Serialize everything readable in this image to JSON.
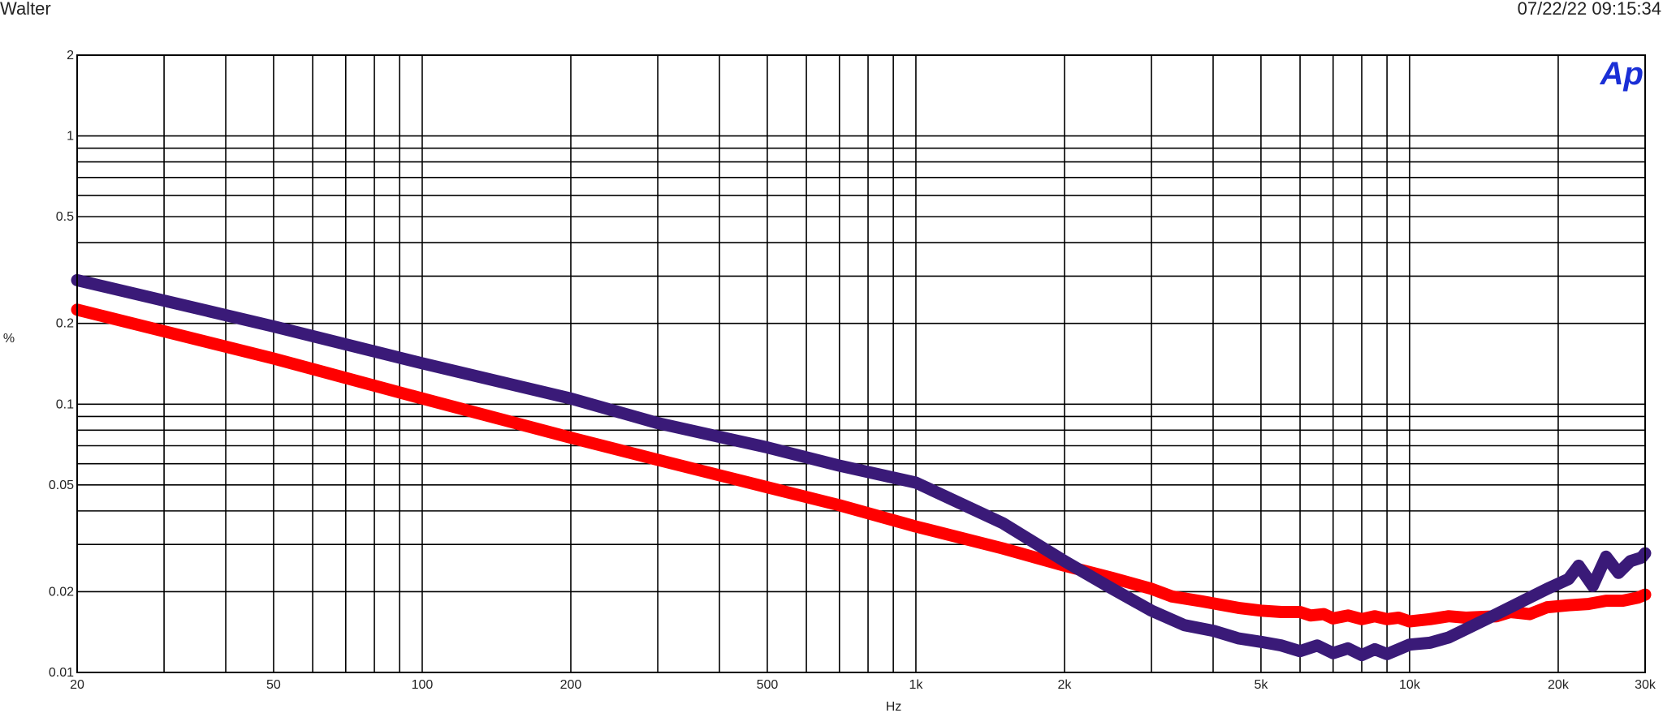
{
  "header": {
    "title": "Walter",
    "timestamp": "07/22/22 09:15:34"
  },
  "logo": {
    "text": "Ap",
    "color": "#1a2fd6"
  },
  "chart_data": {
    "type": "line",
    "xlabel": "Hz",
    "ylabel": "%",
    "x_scale": "log",
    "y_scale": "log",
    "xlim": [
      20,
      30000
    ],
    "ylim": [
      0.01,
      2
    ],
    "grid": true,
    "x_ticks": [
      {
        "value": 20,
        "label": "20"
      },
      {
        "value": 50,
        "label": "50"
      },
      {
        "value": 100,
        "label": "100"
      },
      {
        "value": 200,
        "label": "200"
      },
      {
        "value": 500,
        "label": "500"
      },
      {
        "value": 1000,
        "label": "1k"
      },
      {
        "value": 2000,
        "label": "2k"
      },
      {
        "value": 5000,
        "label": "5k"
      },
      {
        "value": 10000,
        "label": "10k"
      },
      {
        "value": 20000,
        "label": "20k"
      },
      {
        "value": 30000,
        "label": "30k"
      }
    ],
    "y_ticks": [
      {
        "value": 2,
        "label": "2"
      },
      {
        "value": 1,
        "label": "1"
      },
      {
        "value": 0.5,
        "label": "0.5"
      },
      {
        "value": 0.2,
        "label": "0.2"
      },
      {
        "value": 0.1,
        "label": "0.1"
      },
      {
        "value": 0.05,
        "label": "0.05"
      },
      {
        "value": 0.02,
        "label": "0.02"
      },
      {
        "value": 0.01,
        "label": "0.01"
      }
    ],
    "series": [
      {
        "color": "#ff0000",
        "points": [
          [
            20,
            0.225
          ],
          [
            50,
            0.148
          ],
          [
            100,
            0.105
          ],
          [
            200,
            0.075
          ],
          [
            300,
            0.062
          ],
          [
            500,
            0.049
          ],
          [
            700,
            0.042
          ],
          [
            1000,
            0.035
          ],
          [
            1500,
            0.029
          ],
          [
            2000,
            0.025
          ],
          [
            2500,
            0.0225
          ],
          [
            3000,
            0.0205
          ],
          [
            3300,
            0.0192
          ],
          [
            3800,
            0.0184
          ],
          [
            4500,
            0.0174
          ],
          [
            5000,
            0.017
          ],
          [
            5500,
            0.0168
          ],
          [
            6000,
            0.0168
          ],
          [
            6300,
            0.0163
          ],
          [
            6700,
            0.0165
          ],
          [
            7000,
            0.0159
          ],
          [
            7500,
            0.0163
          ],
          [
            8000,
            0.0158
          ],
          [
            8500,
            0.0162
          ],
          [
            9000,
            0.0158
          ],
          [
            9500,
            0.016
          ],
          [
            10000,
            0.0155
          ],
          [
            11000,
            0.0158
          ],
          [
            12000,
            0.0162
          ],
          [
            13000,
            0.016
          ],
          [
            15000,
            0.0162
          ],
          [
            16000,
            0.0168
          ],
          [
            17500,
            0.0165
          ],
          [
            19000,
            0.0175
          ],
          [
            21000,
            0.0178
          ],
          [
            23000,
            0.018
          ],
          [
            25000,
            0.0185
          ],
          [
            27000,
            0.0185
          ],
          [
            29000,
            0.019
          ],
          [
            30000,
            0.0195
          ]
        ]
      },
      {
        "color": "#3a1a78",
        "points": [
          [
            20,
            0.29
          ],
          [
            50,
            0.195
          ],
          [
            100,
            0.142
          ],
          [
            200,
            0.105
          ],
          [
            300,
            0.085
          ],
          [
            500,
            0.069
          ],
          [
            700,
            0.059
          ],
          [
            1000,
            0.051
          ],
          [
            1500,
            0.036
          ],
          [
            2000,
            0.026
          ],
          [
            2500,
            0.0205
          ],
          [
            3000,
            0.017
          ],
          [
            3500,
            0.015
          ],
          [
            4000,
            0.0143
          ],
          [
            4500,
            0.0134
          ],
          [
            5000,
            0.013
          ],
          [
            5500,
            0.0126
          ],
          [
            6000,
            0.012
          ],
          [
            6500,
            0.0126
          ],
          [
            7000,
            0.0118
          ],
          [
            7500,
            0.0123
          ],
          [
            8000,
            0.0116
          ],
          [
            8500,
            0.0122
          ],
          [
            9000,
            0.0117
          ],
          [
            9500,
            0.0122
          ],
          [
            10000,
            0.0127
          ],
          [
            11000,
            0.0129
          ],
          [
            12000,
            0.0135
          ],
          [
            13000,
            0.0145
          ],
          [
            15000,
            0.0165
          ],
          [
            17000,
            0.0185
          ],
          [
            19000,
            0.0205
          ],
          [
            21000,
            0.0223
          ],
          [
            22000,
            0.025
          ],
          [
            23500,
            0.021
          ],
          [
            25000,
            0.027
          ],
          [
            26500,
            0.0235
          ],
          [
            28000,
            0.026
          ],
          [
            29500,
            0.0268
          ],
          [
            30000,
            0.0278
          ]
        ]
      }
    ]
  }
}
